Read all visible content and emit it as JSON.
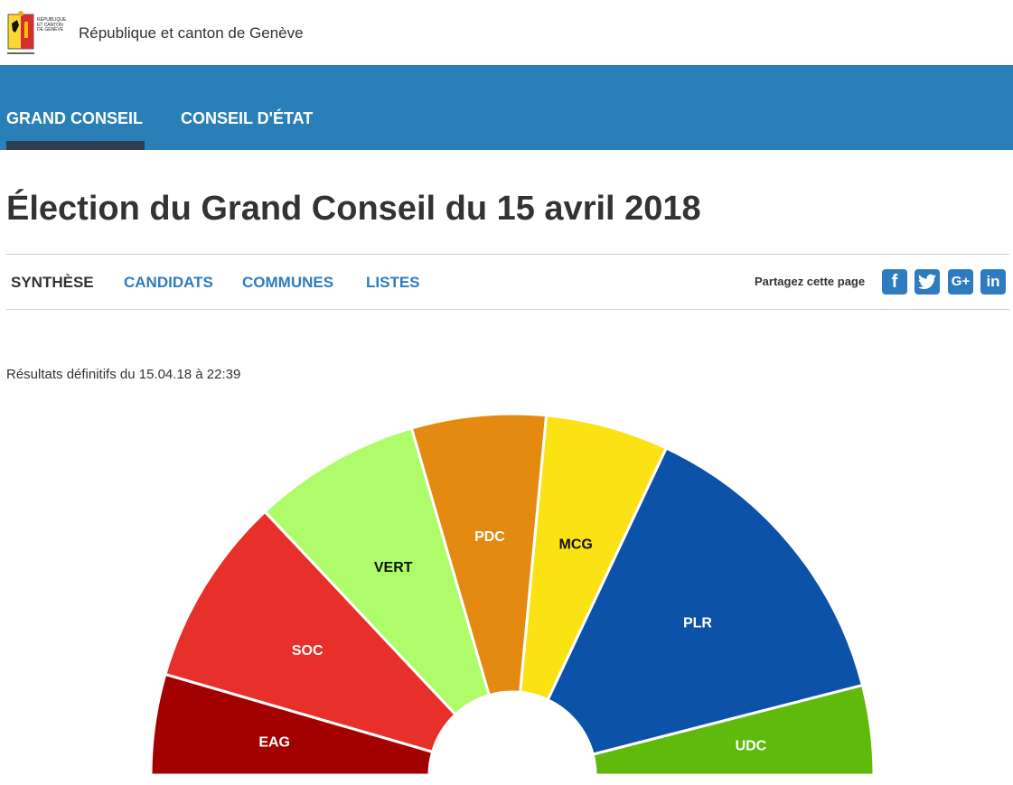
{
  "header": {
    "logo_text": "RÉPUBLIQUE ET CANTON DE GENÈVE",
    "title": "République et canton de Genève"
  },
  "nav": {
    "items": [
      {
        "label": "GRAND CONSEIL"
      },
      {
        "label": "CONSEIL D'ÉTAT"
      }
    ]
  },
  "page": {
    "title": "Élection du Grand Conseil du 15 avril 2018",
    "status": "Résultats définitifs du 15.04.18 à 22:39"
  },
  "tabs": [
    {
      "label": "SYNTHÈSE"
    },
    {
      "label": "CANDIDATS"
    },
    {
      "label": "COMMUNES"
    },
    {
      "label": "LISTES"
    }
  ],
  "share": {
    "label": "Partagez cette page",
    "icons": [
      "facebook-icon",
      "twitter-icon",
      "google-plus-icon",
      "linkedin-icon"
    ]
  },
  "chart_data": {
    "type": "pie",
    "subtype": "half-donut",
    "categories": [
      "EAG",
      "SOC",
      "VERT",
      "PDC",
      "MCG",
      "PLR",
      "UDC"
    ],
    "values": [
      9,
      17,
      15,
      12,
      11,
      28,
      8
    ],
    "colors": [
      "#a30000",
      "#e8302a",
      "#aefc6a",
      "#e58a10",
      "#fbe215",
      "#0c52a8",
      "#5fba0c"
    ],
    "label_colors": [
      "#ffffff",
      "#ffffff",
      "#111111",
      "#ffffff",
      "#111111",
      "#ffffff",
      "#ffffff"
    ]
  }
}
